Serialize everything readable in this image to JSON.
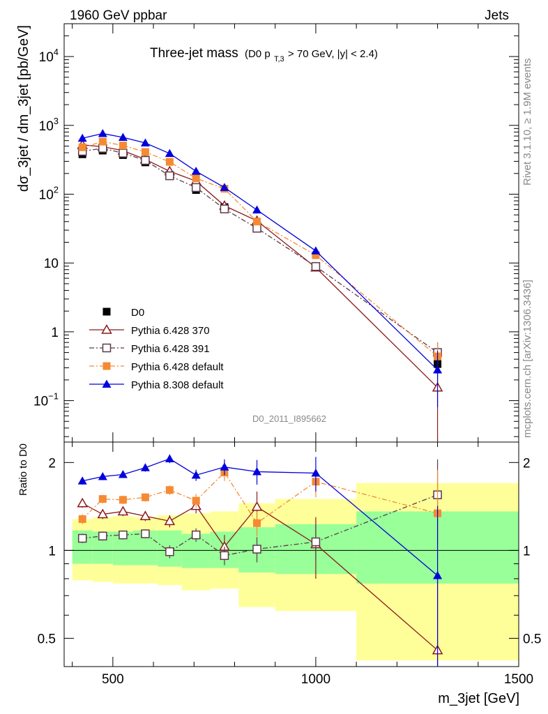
{
  "header": {
    "left": "1960 GeV ppbar",
    "right": "Jets"
  },
  "title": {
    "main": "Three-jet mass",
    "sub_prefix": "(D0 p",
    "sub_subscript": "T,3",
    "sub_suffix": " > 70 GeV, |y| < 2.4)"
  },
  "side_labels": {
    "rivet": "Rivet 3.1.10, ≥ 1.9M events",
    "mcplots": "mcplots.cern.ch [arXiv:1306.3436]"
  },
  "watermark": "D0_2011_I895662",
  "colors": {
    "D0": "#000000",
    "p370": "#8b1a1a",
    "p391": "#5a3a4a",
    "p6def": "#f58a33",
    "p8def": "#0000dd",
    "band_inner": "#99ff99",
    "band_outer": "#ffff99"
  },
  "chart_data": [
    {
      "type": "scatter",
      "title": "Three-jet mass (D0 pT,3 > 70 GeV, |y| < 2.4)",
      "xlabel": "",
      "ylabel": "dσ_3jet / dm_3jet [pb/GeV]",
      "xlim": [
        380,
        1500
      ],
      "ylim": [
        0.025,
        30000
      ],
      "yscale": "log",
      "y_ticks": [
        {
          "v": 0.1,
          "base": "10",
          "exp": "−1"
        },
        {
          "v": 1,
          "base": "1",
          "exp": ""
        },
        {
          "v": 10,
          "base": "10",
          "exp": ""
        },
        {
          "v": 100,
          "base": "10",
          "exp": "2"
        },
        {
          "v": 1000,
          "base": "10",
          "exp": "3"
        },
        {
          "v": 10000,
          "base": "10",
          "exp": "4"
        }
      ],
      "legend_position": "lower-left",
      "x": [
        425,
        475,
        525,
        580,
        640,
        705,
        775,
        855,
        1000,
        1300
      ],
      "xerr": [
        [
          400,
          450
        ],
        [
          450,
          500
        ],
        [
          500,
          550
        ],
        [
          550,
          610
        ],
        [
          610,
          670
        ],
        [
          670,
          740
        ],
        [
          740,
          810
        ],
        [
          810,
          900
        ],
        [
          900,
          1100
        ],
        [
          1100,
          1500
        ]
      ],
      "series": [
        {
          "name": "D0",
          "key": "D0",
          "marker": "square",
          "dash": "",
          "line": false,
          "values": [
            380,
            430,
            370,
            290,
            190,
            115,
            65,
            32,
            8.7,
            0.34
          ],
          "err_lo": [
            0,
            0,
            0,
            0,
            0,
            0,
            0,
            0,
            0.6,
            0.06
          ],
          "err_hi": [
            0,
            0,
            0,
            0,
            0,
            0,
            0,
            0,
            0.6,
            0.06
          ]
        },
        {
          "name": "Pythia 6.428 370",
          "key": "p370",
          "marker": "open-triangle",
          "dash": "",
          "line": true,
          "values": [
            520,
            490,
            430,
            320,
            215,
            155,
            68,
            41,
            8.6,
            0.155
          ],
          "err_lo": [
            15,
            15,
            12,
            10,
            8,
            6,
            4,
            3,
            0.6,
            0.14
          ],
          "err_hi": [
            15,
            15,
            12,
            10,
            8,
            6,
            4,
            3,
            0.6,
            0.3
          ]
        },
        {
          "name": "Pythia 6.428 391",
          "key": "p391",
          "marker": "open-square",
          "dash": "7,3,2,3",
          "line": true,
          "values": [
            420,
            465,
            395,
            310,
            185,
            125,
            61,
            32,
            8.9,
            0.5
          ],
          "err_lo": [
            12,
            12,
            10,
            8,
            6,
            5,
            3,
            2,
            0.5,
            0.25
          ],
          "err_hi": [
            12,
            12,
            10,
            8,
            6,
            5,
            3,
            2,
            0.5,
            0.2
          ]
        },
        {
          "name": "Pythia 6.428 default",
          "key": "p6def",
          "marker": "square",
          "dash": "7,3,2,3",
          "line": true,
          "values": [
            480,
            580,
            510,
            410,
            295,
            170,
            120,
            40,
            13,
            0.44
          ],
          "err_lo": [
            12,
            15,
            12,
            10,
            8,
            6,
            5,
            3,
            0.8,
            0.2
          ],
          "err_hi": [
            12,
            15,
            12,
            10,
            8,
            6,
            5,
            3,
            0.8,
            0.25
          ]
        },
        {
          "name": "Pythia 8.308 default",
          "key": "p8def",
          "marker": "triangle",
          "dash": "",
          "line": true,
          "values": [
            650,
            760,
            670,
            555,
            390,
            215,
            125,
            59,
            15,
            0.28
          ],
          "err_lo": [
            15,
            15,
            15,
            12,
            10,
            8,
            6,
            4,
            1.2,
            0.2
          ],
          "err_hi": [
            15,
            15,
            15,
            12,
            10,
            8,
            6,
            4,
            1.2,
            0.25
          ]
        }
      ]
    },
    {
      "type": "scatter",
      "title": "",
      "xlabel": "m_3jet [GeV]",
      "ylabel": "Ratio to D0",
      "xlim": [
        380,
        1500
      ],
      "ylim": [
        0.4,
        2.35
      ],
      "x_ticks": [
        500,
        1000,
        1500
      ],
      "y_ticks": [
        0.5,
        1,
        2
      ],
      "yscale": "log",
      "ref_line": 1,
      "bands": [
        {
          "x0": 400,
          "x1": 450,
          "inner": [
            0.9,
            1.17
          ],
          "outer": [
            0.79,
            1.28
          ]
        },
        {
          "x0": 450,
          "x1": 500,
          "inner": [
            0.9,
            1.16
          ],
          "outer": [
            0.78,
            1.3
          ]
        },
        {
          "x0": 500,
          "x1": 550,
          "inner": [
            0.89,
            1.16
          ],
          "outer": [
            0.77,
            1.31
          ]
        },
        {
          "x0": 550,
          "x1": 610,
          "inner": [
            0.89,
            1.17
          ],
          "outer": [
            0.77,
            1.3
          ]
        },
        {
          "x0": 610,
          "x1": 670,
          "inner": [
            0.88,
            1.17
          ],
          "outer": [
            0.76,
            1.32
          ]
        },
        {
          "x0": 670,
          "x1": 740,
          "inner": [
            0.87,
            1.14
          ],
          "outer": [
            0.73,
            1.34
          ]
        },
        {
          "x0": 740,
          "x1": 810,
          "inner": [
            0.87,
            1.16
          ],
          "outer": [
            0.74,
            1.36
          ]
        },
        {
          "x0": 810,
          "x1": 900,
          "inner": [
            0.84,
            1.2
          ],
          "outer": [
            0.64,
            1.45
          ]
        },
        {
          "x0": 900,
          "x1": 1100,
          "inner": [
            0.83,
            1.23
          ],
          "outer": [
            0.62,
            1.5
          ]
        },
        {
          "x0": 1100,
          "x1": 1500,
          "inner": [
            0.77,
            1.36
          ],
          "outer": [
            0.42,
            1.7
          ]
        }
      ],
      "x": [
        425,
        475,
        525,
        580,
        640,
        705,
        775,
        855,
        1000,
        1300
      ],
      "series": [
        {
          "name": "Pythia 6.428 370",
          "key": "p370",
          "marker": "open-triangle",
          "dash": "",
          "values": [
            1.45,
            1.33,
            1.36,
            1.31,
            1.26,
            1.42,
            1.03,
            1.41,
            1.05,
            0.455
          ],
          "err": [
            0.05,
            0.05,
            0.05,
            0.05,
            0.06,
            0.08,
            0.1,
            0.18,
            0.25,
            0.4
          ]
        },
        {
          "name": "Pythia 6.428 391",
          "key": "p391",
          "marker": "open-square",
          "dash": "7,3,2,3",
          "values": [
            1.1,
            1.12,
            1.13,
            1.14,
            0.99,
            1.13,
            0.96,
            1.01,
            1.07,
            1.55
          ],
          "err": [
            0.04,
            0.04,
            0.04,
            0.04,
            0.05,
            0.06,
            0.07,
            0.1,
            0.15,
            0.5
          ]
        },
        {
          "name": "Pythia 6.428 default",
          "key": "p6def",
          "marker": "square",
          "dash": "7,3,2,3",
          "values": [
            1.28,
            1.5,
            1.49,
            1.52,
            1.61,
            1.48,
            1.85,
            1.24,
            1.72,
            1.34
          ],
          "err": [
            0.05,
            0.05,
            0.05,
            0.05,
            0.06,
            0.08,
            0.12,
            0.12,
            0.2,
            0.55
          ]
        },
        {
          "name": "Pythia 8.308 default",
          "key": "p8def",
          "marker": "triangle",
          "dash": "",
          "values": [
            1.73,
            1.79,
            1.82,
            1.92,
            2.06,
            1.81,
            1.93,
            1.86,
            1.84,
            0.82
          ],
          "err": [
            0.05,
            0.05,
            0.05,
            0.06,
            0.07,
            0.08,
            0.12,
            0.18,
            0.25,
            0.6
          ]
        }
      ]
    }
  ]
}
